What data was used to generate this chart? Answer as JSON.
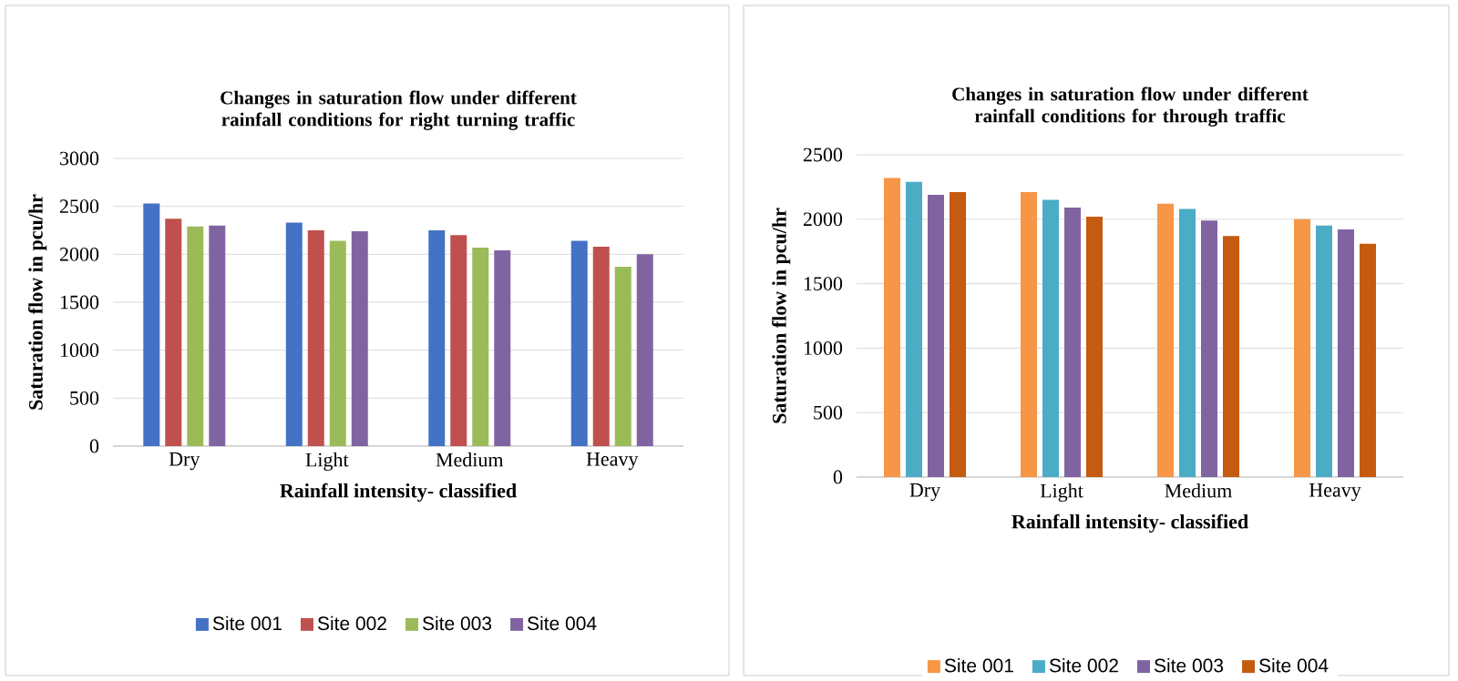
{
  "chart_data": [
    {
      "type": "bar",
      "title": "Changes in saturation flow under different rainfall conditions for right turning traffic",
      "xlabel": "Rainfall intensity- classified",
      "ylabel": "Saturation flow in pcu/hr",
      "categories": [
        "Dry",
        "Light",
        "Medium",
        "Heavy"
      ],
      "series": [
        {
          "name": "Site 001",
          "color": "#4472c4",
          "values": [
            2530,
            2330,
            2250,
            2140
          ]
        },
        {
          "name": "Site 002",
          "color": "#c0504d",
          "values": [
            2370,
            2250,
            2200,
            2080
          ]
        },
        {
          "name": "Site 003",
          "color": "#9bbb59",
          "values": [
            2290,
            2140,
            2070,
            1870
          ]
        },
        {
          "name": "Site 004",
          "color": "#8064a2",
          "values": [
            2300,
            2240,
            2040,
            2000
          ]
        }
      ],
      "ylim": [
        0,
        3000
      ],
      "yticks": [
        0,
        500,
        1000,
        1500,
        2000,
        2500,
        3000
      ],
      "grid": "y",
      "legend": "bottom"
    },
    {
      "type": "bar",
      "title": "Changes in saturation flow under different rainfall conditions for through traffic",
      "xlabel": "Rainfall intensity- classified",
      "ylabel": "Saturation flow in pcu/hr",
      "categories": [
        "Dry",
        "Light",
        "Medium",
        "Heavy"
      ],
      "series": [
        {
          "name": "Site 001",
          "color": "#f79646",
          "values": [
            2320,
            2210,
            2120,
            2000
          ]
        },
        {
          "name": "Site 002",
          "color": "#4bacc6",
          "values": [
            2290,
            2150,
            2080,
            1950
          ]
        },
        {
          "name": "Site 003",
          "color": "#8064a2",
          "values": [
            2190,
            2090,
            1990,
            1920
          ]
        },
        {
          "name": "Site 004",
          "color": "#c55a11",
          "values": [
            2210,
            2020,
            1870,
            1810
          ]
        }
      ],
      "ylim": [
        0,
        2500
      ],
      "yticks": [
        0,
        500,
        1000,
        1500,
        2000,
        2500
      ],
      "grid": "y",
      "legend": "bottom"
    }
  ]
}
